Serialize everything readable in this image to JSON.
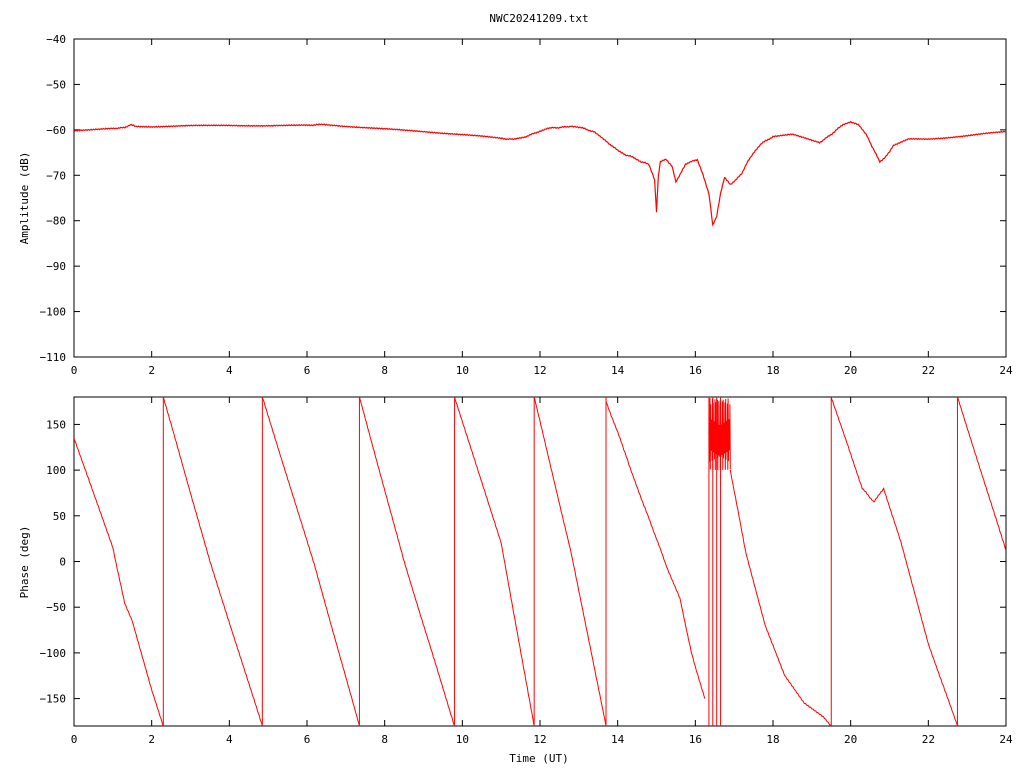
{
  "title": "NWC20241209.txt",
  "line_color": "#ff0000",
  "chart_data": [
    {
      "type": "line",
      "name": "amplitude",
      "xlabel": "",
      "ylabel": "Amplitude (dB)",
      "xlim": [
        0,
        24
      ],
      "ylim": [
        -110,
        -40
      ],
      "xticks": [
        0,
        2,
        4,
        6,
        8,
        10,
        12,
        14,
        16,
        18,
        20,
        22,
        24
      ],
      "yticks": [
        -110,
        -100,
        -90,
        -80,
        -70,
        -60,
        -50,
        -40
      ],
      "ytick_labels": [
        "−110",
        "−100",
        "−90",
        "−80",
        "−70",
        "−60",
        "−50",
        "−40"
      ],
      "series": [
        {
          "x": [
            0,
            0.5,
            1.0,
            1.3,
            1.45,
            1.6,
            2.0,
            3.0,
            4.0,
            5.0,
            6.0,
            6.4,
            7.0,
            8.0,
            9.0,
            10.0,
            10.5,
            11.0,
            11.3,
            11.6,
            11.9,
            12.2,
            12.5,
            12.8,
            13.1,
            13.4,
            13.7,
            14.0,
            14.2,
            14.4,
            14.6,
            14.8,
            14.95,
            15.0,
            15.05,
            15.1,
            15.25,
            15.4,
            15.5,
            15.6,
            15.75,
            15.9,
            16.05,
            16.2,
            16.35,
            16.45,
            16.55,
            16.65,
            16.75,
            16.9,
            17.05,
            17.2,
            17.35,
            17.5,
            17.7,
            18.0,
            18.5,
            19.0,
            19.2,
            19.5,
            19.8,
            20.0,
            20.2,
            20.4,
            20.6,
            20.75,
            20.9,
            21.1,
            21.5,
            22.0,
            22.5,
            23.0,
            23.5,
            24.0
          ],
          "y": [
            -60.2,
            -60.0,
            -59.7,
            -59.5,
            -58.9,
            -59.2,
            -59.3,
            -59.1,
            -59.0,
            -59.1,
            -59.0,
            -58.8,
            -59.2,
            -59.8,
            -60.4,
            -61.0,
            -61.4,
            -61.9,
            -62.1,
            -61.6,
            -60.6,
            -59.6,
            -59.5,
            -59.2,
            -59.6,
            -60.5,
            -62.5,
            -64.5,
            -65.5,
            -66.0,
            -67.0,
            -67.5,
            -71.0,
            -78.0,
            -70.0,
            -67.0,
            -66.5,
            -68.0,
            -71.5,
            -70.0,
            -67.5,
            -67.0,
            -66.5,
            -70.0,
            -74.0,
            -81.0,
            -79.0,
            -74.0,
            -70.5,
            -72.0,
            -71.0,
            -69.5,
            -67.0,
            -65.0,
            -63.0,
            -61.5,
            -61.0,
            -62.3,
            -62.8,
            -61.0,
            -58.8,
            -58.2,
            -58.8,
            -61.0,
            -64.5,
            -67.0,
            -66.0,
            -63.5,
            -62.0,
            -62.0,
            -61.7,
            -61.3,
            -60.8,
            -60.4
          ]
        }
      ]
    },
    {
      "type": "line",
      "name": "phase",
      "xlabel": "Time (UT)",
      "ylabel": "Phase (deg)",
      "xlim": [
        0,
        24
      ],
      "ylim": [
        -180,
        180
      ],
      "xticks": [
        0,
        2,
        4,
        6,
        8,
        10,
        12,
        14,
        16,
        18,
        20,
        22,
        24
      ],
      "yticks": [
        -150,
        -100,
        -50,
        0,
        50,
        100,
        150
      ],
      "ytick_labels": [
        "−150",
        "−100",
        "−50",
        "0",
        "50",
        "100",
        "150"
      ],
      "series": [
        {
          "segments": [
            {
              "x": [
                0,
                1.0,
                1.3,
                1.5,
                2.0,
                2.3
              ],
              "y": [
                135,
                15,
                -45,
                -65,
                -140,
                -180
              ]
            },
            {
              "x": [
                2.3,
                3.5,
                4.85
              ],
              "y": [
                180,
                0,
                -180
              ]
            },
            {
              "x": [
                4.85,
                6.2,
                7.35
              ],
              "y": [
                180,
                -5,
                -180
              ]
            },
            {
              "x": [
                7.35,
                8.5,
                9.8
              ],
              "y": [
                180,
                0,
                -180
              ]
            },
            {
              "x": [
                9.8,
                11.0,
                11.85
              ],
              "y": [
                180,
                20,
                -180
              ]
            },
            {
              "x": [
                11.85,
                12.8,
                13.7
              ],
              "y": [
                180,
                10,
                -180
              ]
            },
            {
              "x": [
                13.7,
                14.1,
                14.3,
                14.6,
                15.0,
                15.3,
                15.6,
                15.9,
                16.1,
                16.25
              ],
              "y": [
                175,
                130,
                105,
                70,
                25,
                -10,
                -40,
                -100,
                -130,
                -150
              ]
            },
            {
              "x": [
                16.9,
                17.3,
                17.8,
                18.3,
                18.8,
                19.3,
                19.5
              ],
              "y": [
                100,
                10,
                -70,
                -125,
                -155,
                -170,
                -180
              ]
            },
            {
              "x": [
                19.5,
                20.3,
                20.6,
                20.85,
                21.3,
                22.0,
                22.75
              ],
              "y": [
                180,
                80,
                65,
                80,
                20,
                -90,
                -180
              ]
            },
            {
              "x": [
                22.75,
                24.0
              ],
              "y": [
                180,
                12
              ]
            }
          ],
          "wraps": [
            2.3,
            4.85,
            7.35,
            9.8,
            11.85,
            13.7,
            16.35,
            16.45,
            16.55,
            16.65,
            19.5,
            22.75
          ],
          "noisy_band": {
            "x": [
              16.35,
              16.9
            ],
            "y": [
              100,
              180
            ]
          }
        }
      ]
    }
  ]
}
